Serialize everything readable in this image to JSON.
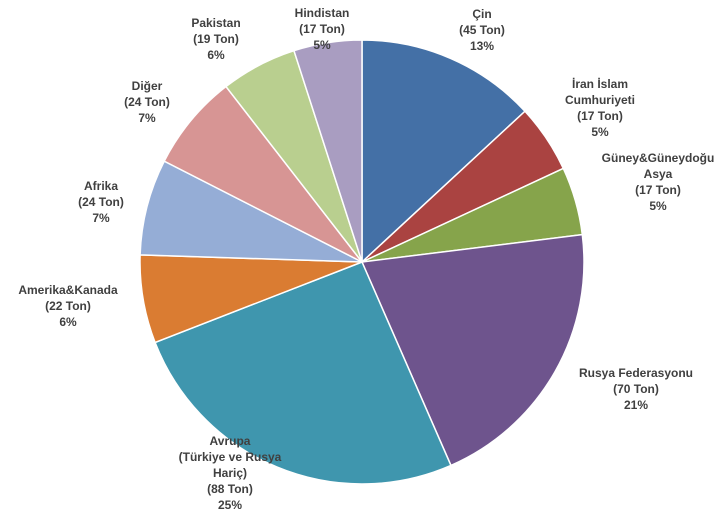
{
  "chart_data": {
    "type": "pie",
    "title": "",
    "start_angle_deg": 0,
    "direction": "clockwise",
    "legend": "none",
    "slices": [
      {
        "label_lines": [
          "Çin",
          "(45 Ton)",
          "13%"
        ],
        "value": 45,
        "percent": 13,
        "color": "#4470a6"
      },
      {
        "label_lines": [
          "İran İslam",
          "Cumhuriyeti",
          "(17 Ton)",
          "5%"
        ],
        "value": 17,
        "percent": 5,
        "color": "#aa4341"
      },
      {
        "label_lines": [
          "Güney&Güneydoğu",
          "Asya",
          "(17 Ton)",
          "5%"
        ],
        "value": 17,
        "percent": 5,
        "color": "#86a44b"
      },
      {
        "label_lines": [
          "Rusya Federasyonu",
          "(70 Ton)",
          "21%"
        ],
        "value": 70,
        "percent": 21,
        "color": "#6e548d"
      },
      {
        "label_lines": [
          "Avrupa",
          "(Türkiye ve Rusya",
          "Hariç)",
          "(88 Ton)",
          "25%"
        ],
        "value": 88,
        "percent": 25,
        "color": "#3f96ae"
      },
      {
        "label_lines": [
          "Amerika&Kanada",
          "(22 Ton)",
          "6%"
        ],
        "value": 22,
        "percent": 6,
        "color": "#da7c32"
      },
      {
        "label_lines": [
          "Afrika",
          "(24 Ton)",
          "7%"
        ],
        "value": 24,
        "percent": 7,
        "color": "#95add6"
      },
      {
        "label_lines": [
          "Diğer",
          "(24 Ton)",
          "7%"
        ],
        "value": 24,
        "percent": 7,
        "color": "#d79594"
      },
      {
        "label_lines": [
          "Pakistan",
          "(19 Ton)",
          "6%"
        ],
        "value": 19,
        "percent": 6,
        "color": "#b9cf8f"
      },
      {
        "label_lines": [
          "Hindistan",
          "(17 Ton)",
          "5%"
        ],
        "value": 17,
        "percent": 5,
        "color": "#a99dc1"
      }
    ]
  }
}
